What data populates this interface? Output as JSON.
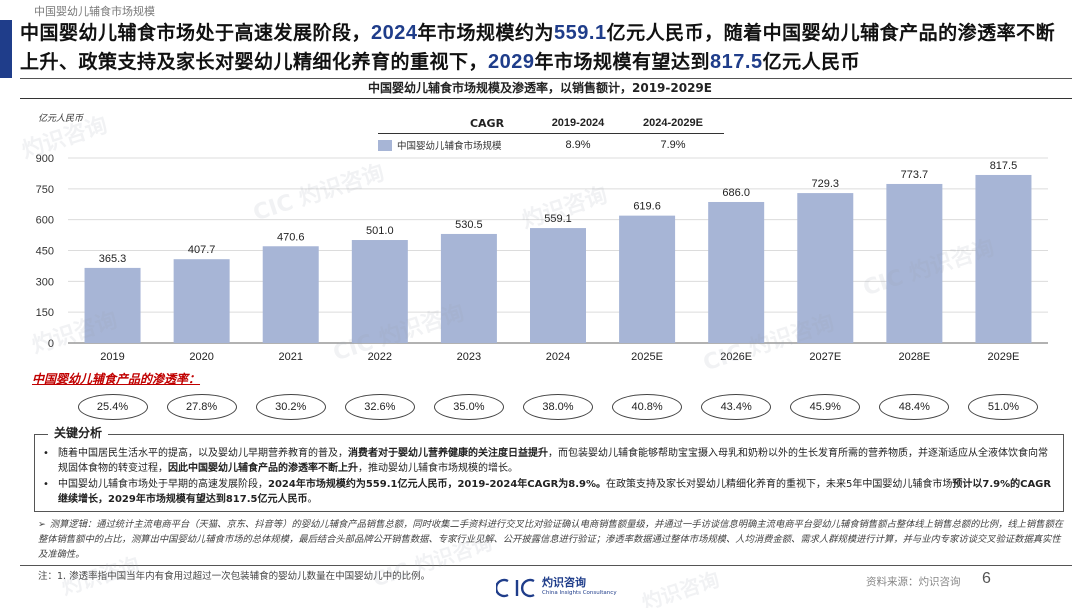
{
  "header": {
    "section_title": "中国婴幼儿辅食市场规模",
    "headline_parts": [
      {
        "t": "中国婴幼儿辅食市场处于高速发展阶段，",
        "n": false
      },
      {
        "t": "2024",
        "n": true
      },
      {
        "t": "年市场规模约为",
        "n": false
      },
      {
        "t": "559.1",
        "n": true
      },
      {
        "t": "亿元人民币，随着中国婴幼儿辅食产品的渗透率不断上升、政策支持及家长对婴幼儿精细化养育的重视下，",
        "n": false
      },
      {
        "t": "2029",
        "n": true
      },
      {
        "t": "年市场规模有望达到",
        "n": false
      },
      {
        "t": "817.5",
        "n": true
      },
      {
        "t": "亿元人民币",
        "n": false
      }
    ]
  },
  "chart_title": "中国婴幼儿辅食市场规模及渗透率，以销售额计，2019-2029E",
  "unit_label": "亿元人民币",
  "cagr": {
    "header": [
      "CAGR",
      "2019-2024",
      "2024-2029E"
    ],
    "series_label": "中国婴幼儿辅食市场规模",
    "values": [
      "8.9%",
      "7.9%"
    ]
  },
  "chart_data": {
    "type": "bar",
    "categories": [
      "2019",
      "2020",
      "2021",
      "2022",
      "2023",
      "2024",
      "2025E",
      "2026E",
      "2027E",
      "2028E",
      "2029E"
    ],
    "series": [
      {
        "name": "中国婴幼儿辅食市场规模",
        "values": [
          365.3,
          407.7,
          470.6,
          501.0,
          530.5,
          559.1,
          619.6,
          686.0,
          729.3,
          773.7,
          817.5
        ]
      }
    ],
    "value_labels": [
      "365.3",
      "407.7",
      "470.6",
      "501.0",
      "530.5",
      "559.1",
      "619.6",
      "686.0",
      "729.3",
      "773.7",
      "817.5"
    ],
    "ylabel": "亿元人民币",
    "ylim": [
      0,
      900
    ],
    "yticks": [
      0,
      150,
      300,
      450,
      600,
      750,
      900
    ],
    "grid": true,
    "bar_color": "#a7b5d6"
  },
  "penetration": {
    "label": "中国婴幼儿辅食产品的渗透率：",
    "values": [
      "25.4%",
      "27.8%",
      "30.2%",
      "32.6%",
      "35.0%",
      "38.0%",
      "40.8%",
      "43.4%",
      "45.9%",
      "48.4%",
      "51.0%"
    ]
  },
  "analysis": {
    "title": "关键分析",
    "bullets": [
      [
        {
          "t": "随着中国居民生活水平的提高，以及婴幼儿早期营养教育的普及，",
          "b": false
        },
        {
          "t": "消费者对于婴幼儿营养健康的关注度日益提升",
          "b": true
        },
        {
          "t": "，而包装婴幼儿辅食能够帮助宝宝摄入母乳和奶粉以外的生长发育所需的营养物质，并逐渐适应从全液体饮食向常规固体食物的转变过程，",
          "b": false
        },
        {
          "t": "因此中国婴幼儿辅食产品的渗透率不断上升",
          "b": true
        },
        {
          "t": "，推动婴幼儿辅食市场规模的增长。",
          "b": false
        }
      ],
      [
        {
          "t": "中国婴幼儿辅食市场处于早期的高速发展阶段，",
          "b": false
        },
        {
          "t": "2024年市场规模约为559.1亿元人民币，2019-2024年CAGR为8.9%。",
          "b": true
        },
        {
          "t": "在政策支持及家长对婴幼儿精细化养育的重视下，未来5年中国婴幼儿辅食市场",
          "b": false
        },
        {
          "t": "预计以7.9%的CAGR继续增长，2029年市场规模有望达到817.5亿元人民币",
          "b": true
        },
        {
          "t": "。",
          "b": false
        }
      ]
    ]
  },
  "methodology": "测算逻辑：通过统计主流电商平台（天猫、京东、抖音等）的婴幼儿辅食产品销售总额，同时收集二手资料进行交叉比对验证确认电商销售额量级，并通过一手访谈信息明确主流电商平台婴幼儿辅食销售额占整体线上销售总额的比例，线上销售额在整体销售额中的占比，测算出中国婴幼儿辅食市场的总体规模，最后结合头部品牌公开销售数据、专家行业见解、公开披露信息进行验证；渗透率数据通过整体市场规模、人均消费金额、需求人群规模进行计算，并与业内专家访谈交叉验证数据真实性及准确性。",
  "note": "注：1. 渗透率指中国当年内有食用过超过一次包装辅食的婴幼儿数量在中国婴幼儿中的比例。",
  "footer": {
    "logo_text": "CIC",
    "logo_cn": "灼识咨询",
    "logo_en": "China Insights Consultancy",
    "source": "资料来源：灼识咨询",
    "page": "6"
  },
  "watermark": {
    "cn": "灼识咨询",
    "en": "China Insights Consultancy",
    "logo": "CIC"
  },
  "colors": {
    "brand": "#1f3d8a",
    "bar": "#a7b5d6",
    "highlight": "#c00000"
  }
}
